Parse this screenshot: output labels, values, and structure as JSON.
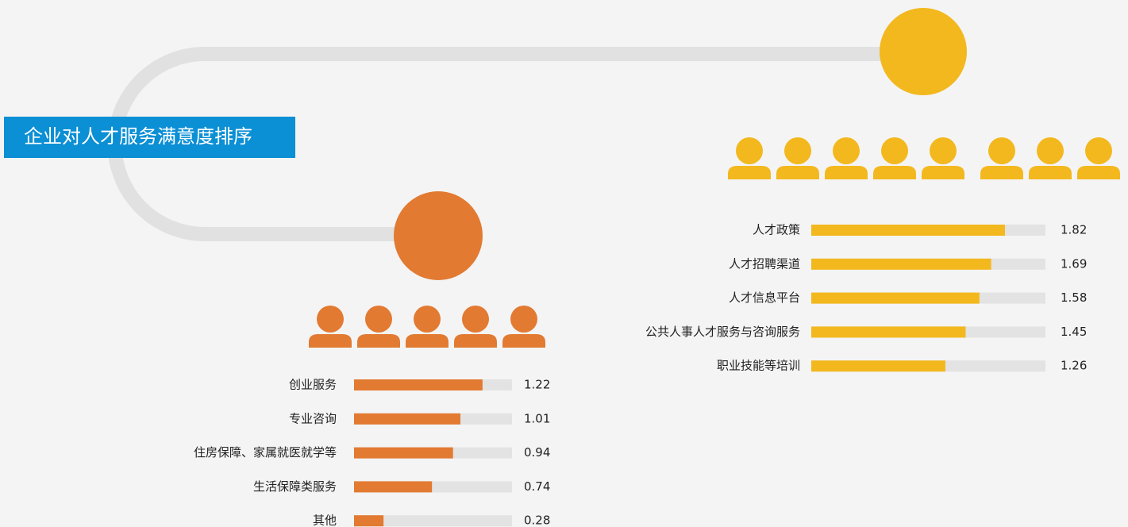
{
  "title": "企业对人才服务满意度排序",
  "chart_data": [
    {
      "type": "bar",
      "orientation": "horizontal",
      "color": "#f3b81e",
      "categories": [
        "人才政策",
        "人才招聘渠道",
        "人才信息平台",
        "公共人事人才服务与咨询服务",
        "职业技能等培训"
      ],
      "values": [
        1.82,
        1.69,
        1.58,
        1.45,
        1.26
      ],
      "xlim": [
        0,
        2.2
      ]
    },
    {
      "type": "bar",
      "orientation": "horizontal",
      "color": "#e27a32",
      "categories": [
        "创业服务",
        "专业咨询",
        "住房保障、家属就医就学等",
        "生活保障类服务",
        "其他"
      ],
      "values": [
        1.22,
        1.01,
        0.94,
        0.74,
        0.28
      ],
      "xlim": [
        0,
        1.5
      ]
    }
  ]
}
